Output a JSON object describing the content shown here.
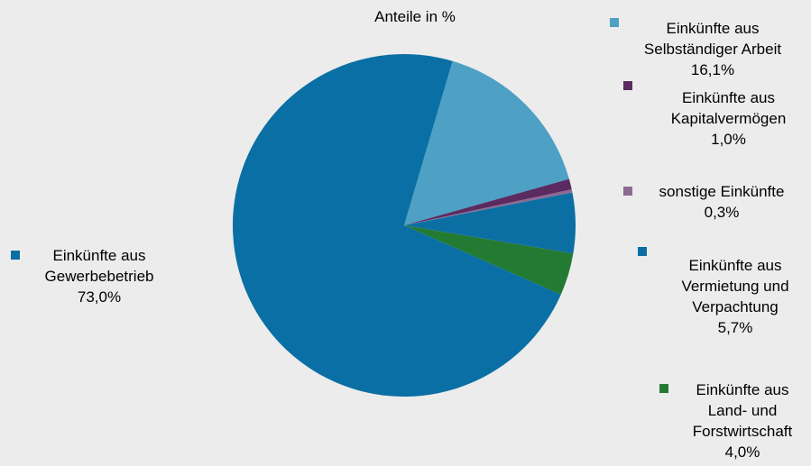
{
  "chart_data": {
    "type": "pie",
    "title": "Anteile in %",
    "slices": [
      {
        "label_lines": [
          "Einkünfte aus",
          "Selbständiger Arbeit"
        ],
        "value": 16.1,
        "value_label": "16,1%",
        "color": "#4ea0c4"
      },
      {
        "label_lines": [
          "Einkünfte aus",
          "Kapitalvermögen"
        ],
        "value": 1.0,
        "value_label": "1,0%",
        "color": "#5a2a60"
      },
      {
        "label_lines": [
          "sonstige Einkünfte"
        ],
        "value": 0.3,
        "value_label": "0,3%",
        "color": "#8d6a92"
      },
      {
        "label_lines": [
          "Einkünfte aus",
          "Vermietung und",
          "Verpachtung"
        ],
        "value": 5.7,
        "value_label": "5,7%",
        "color": "#0b6fa4"
      },
      {
        "label_lines": [
          "Einkünfte aus",
          "Land- und",
          "Forstwirtschaft"
        ],
        "value": 4.0,
        "value_label": "4,0%",
        "color": "#237a32"
      },
      {
        "label_lines": [
          "Einkünfte aus",
          "Gewerbebetrieb"
        ],
        "value": 73.0,
        "value_label": "73,0%",
        "color": "#0a6fa4"
      }
    ]
  }
}
